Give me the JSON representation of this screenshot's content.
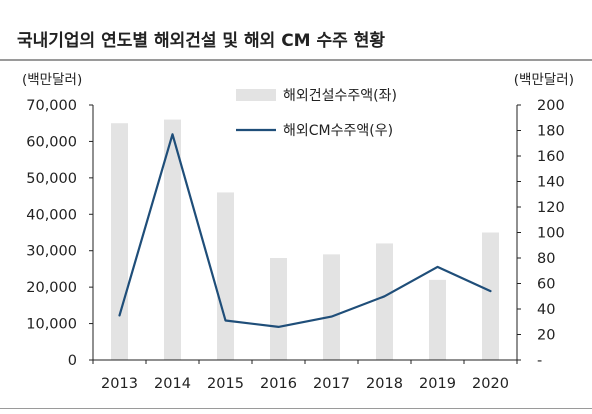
{
  "title": "국내기업의 연도별 해외건설 및 해외 CM 수주 현황",
  "chart_data": {
    "type": "bar",
    "categories": [
      "2013",
      "2014",
      "2015",
      "2016",
      "2017",
      "2018",
      "2019",
      "2020"
    ],
    "series": [
      {
        "name": "해외건설수주액(좌)",
        "type": "bar",
        "axis": "left",
        "color": "#e3e3e3",
        "values": [
          65000,
          66000,
          46000,
          28000,
          29000,
          32000,
          22000,
          35000
        ]
      },
      {
        "name": "해외CM수주액(우)",
        "type": "line",
        "axis": "right",
        "color": "#1f4e79",
        "values": [
          35,
          177,
          31,
          26,
          34,
          50,
          73,
          54
        ]
      }
    ],
    "left_axis": {
      "unit": "(백만달러)",
      "ylim": [
        0,
        70000
      ],
      "ticks": [
        "0",
        "10,000",
        "20,000",
        "30,000",
        "40,000",
        "50,000",
        "60,000",
        "70,000"
      ]
    },
    "right_axis": {
      "unit": "(백만달러)",
      "ylim": [
        0,
        200
      ],
      "ticks": [
        "-",
        "20",
        "40",
        "60",
        "80",
        "100",
        "120",
        "140",
        "160",
        "180",
        "200"
      ]
    },
    "legend_position": "top-center",
    "grid": false
  }
}
